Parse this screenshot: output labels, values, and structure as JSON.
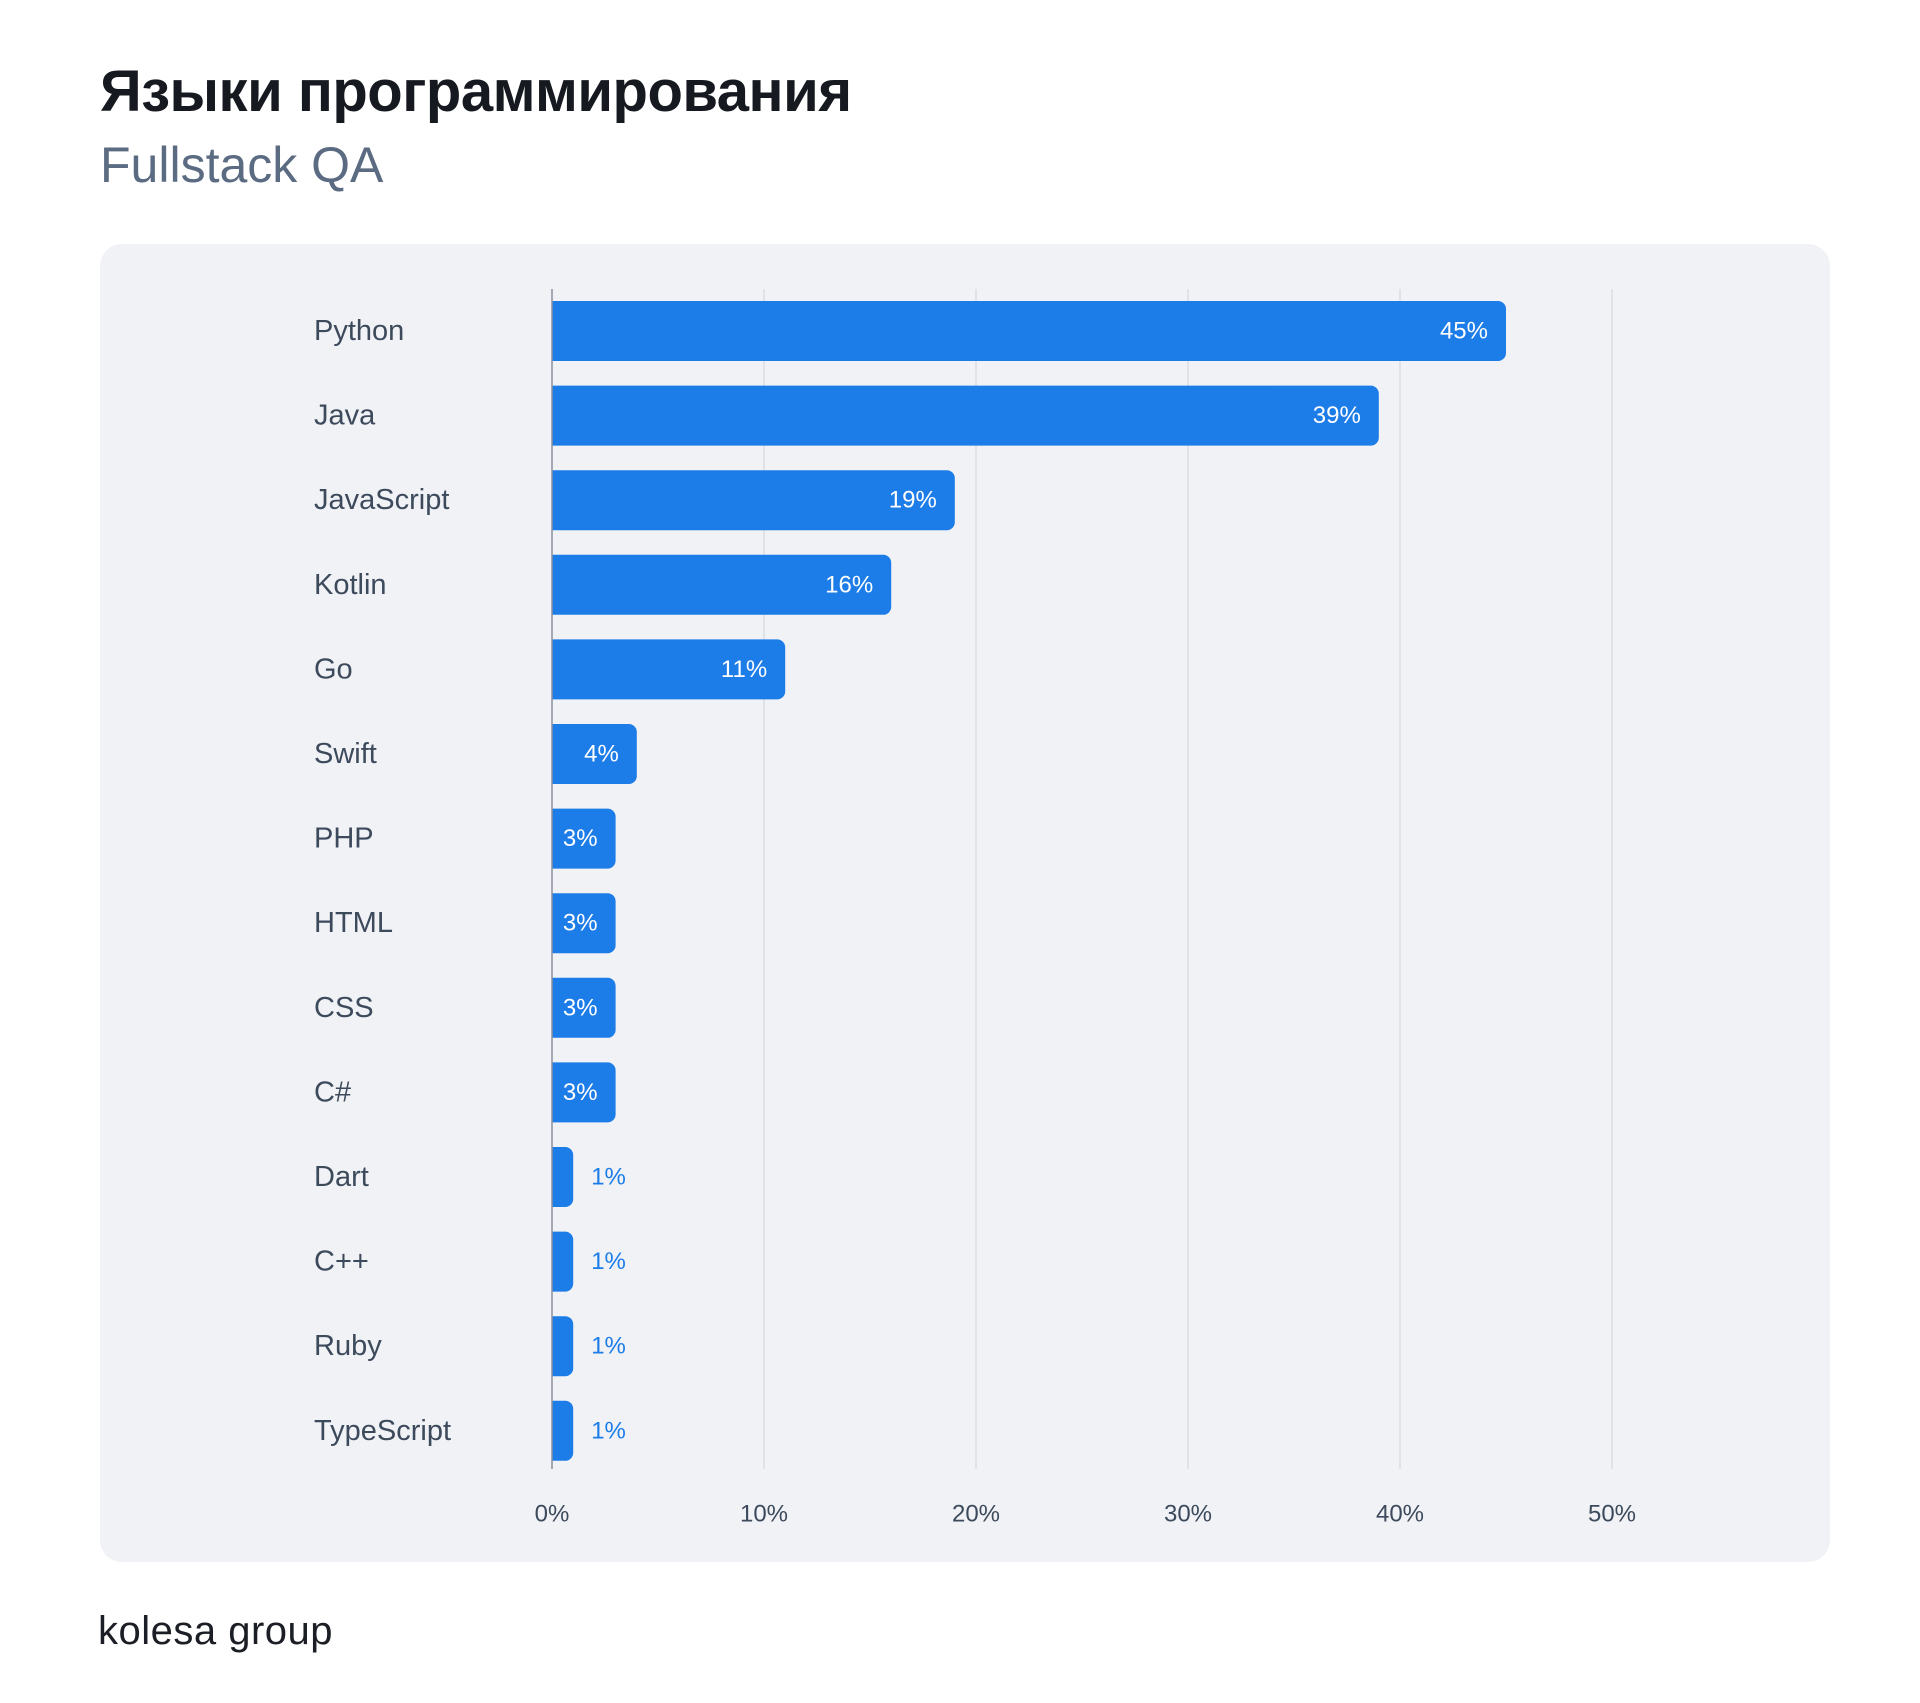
{
  "header": {
    "title": "Языки программирования",
    "subtitle": "Fullstack QA"
  },
  "footer": {
    "brand": "kolesa group"
  },
  "colors": {
    "bar": "#1c7ce8",
    "bar_label_inside": "#ffffff",
    "bar_label_outside": "#1c7ce8",
    "category_label": "#3d4a5c",
    "tick_label": "#3d4a5c",
    "grid": "#d9dce2",
    "panel": "#f0f2f6"
  },
  "chart_data": {
    "type": "bar",
    "orientation": "horizontal",
    "title": "Языки программирования",
    "subtitle": "Fullstack QA",
    "categories": [
      "Python",
      "Java",
      "JavaScript",
      "Kotlin",
      "Go",
      "Swift",
      "PHP",
      "HTML",
      "CSS",
      "C#",
      "Dart",
      "C++",
      "Ruby",
      "TypeScript"
    ],
    "values": [
      45,
      39,
      19,
      16,
      11,
      4,
      3,
      3,
      3,
      3,
      1,
      1,
      1,
      1
    ],
    "value_labels": [
      "45%",
      "39%",
      "19%",
      "16%",
      "11%",
      "4%",
      "3%",
      "3%",
      "3%",
      "3%",
      "1%",
      "1%",
      "1%",
      "1%"
    ],
    "x_ticks": [
      0,
      10,
      20,
      30,
      40,
      50
    ],
    "x_tick_labels": [
      "0%",
      "10%",
      "20%",
      "30%",
      "40%",
      "50%"
    ],
    "xlim": [
      0,
      50
    ],
    "grid": true,
    "legend": "none"
  }
}
